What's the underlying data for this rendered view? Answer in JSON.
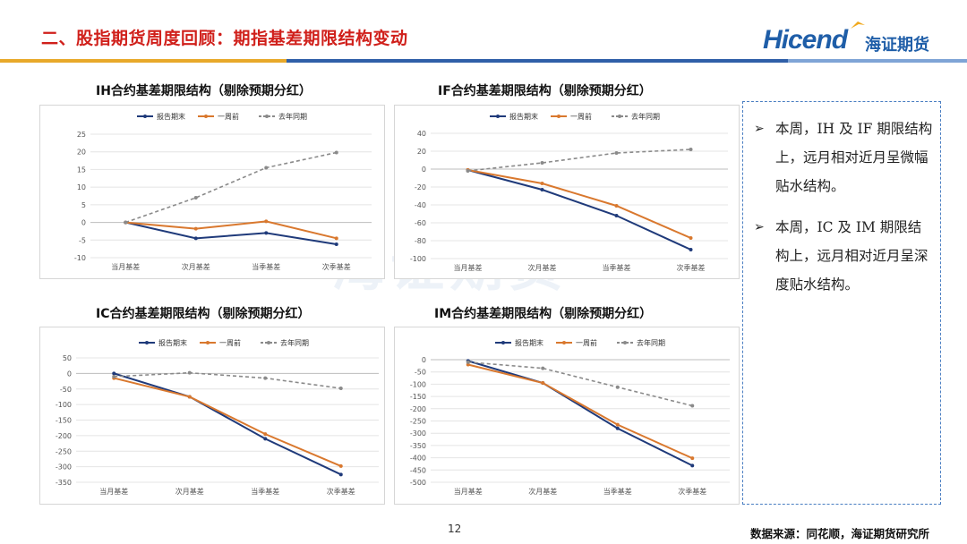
{
  "header": {
    "title": "二、股指期货周度回顾：期指基差期限结构变动",
    "logo_text": "Hicend",
    "logo_cn": "海证期货",
    "stripe_colors": [
      "#e8a92a",
      "#2f5fa8",
      "#7fa4d6"
    ]
  },
  "watermark": "海证期货",
  "legend": {
    "series": [
      "报告期末",
      "一周前",
      "去年同期"
    ]
  },
  "colors": {
    "current": "#1f3a7a",
    "week_ago": "#d9782e",
    "last_year": "#8a8a8a"
  },
  "chart_data": [
    {
      "id": "IH",
      "type": "line",
      "title": "IH合约基差期限结构（剔除预期分红）",
      "categories": [
        "当月基差",
        "次月基差",
        "当季基差",
        "次季基差"
      ],
      "ylim": [
        -10,
        25
      ],
      "yticks": [
        -10,
        -5,
        0,
        5,
        10,
        15,
        20,
        25
      ],
      "series": [
        {
          "name": "报告期末",
          "values": [
            0,
            -4.5,
            -3,
            -6.2
          ]
        },
        {
          "name": "一周前",
          "values": [
            0,
            -1.8,
            0.3,
            -4.5
          ]
        },
        {
          "name": "去年同期",
          "values": [
            0,
            7,
            15.5,
            19.8
          ]
        }
      ]
    },
    {
      "id": "IF",
      "type": "line",
      "title": "IF合约基差期限结构（剔除预期分红）",
      "categories": [
        "当月基差",
        "次月基差",
        "当季基差",
        "次季基差"
      ],
      "ylim": [
        -100,
        40
      ],
      "yticks": [
        -100,
        -80,
        -60,
        -40,
        -20,
        0,
        20,
        40
      ],
      "series": [
        {
          "name": "报告期末",
          "values": [
            -1,
            -23,
            -52,
            -90
          ]
        },
        {
          "name": "一周前",
          "values": [
            -1,
            -16,
            -41,
            -77
          ]
        },
        {
          "name": "去年同期",
          "values": [
            -2,
            7,
            18,
            22
          ]
        }
      ]
    },
    {
      "id": "IC",
      "type": "line",
      "title": "IC合约基差期限结构（剔除预期分红）",
      "categories": [
        "当月基差",
        "次月基差",
        "当季基差",
        "次季基差"
      ],
      "ylim": [
        -350,
        50
      ],
      "yticks": [
        -350,
        -300,
        -250,
        -200,
        -150,
        -100,
        -50,
        0,
        50
      ],
      "series": [
        {
          "name": "报告期末",
          "values": [
            0,
            -75,
            -210,
            -325
          ]
        },
        {
          "name": "一周前",
          "values": [
            -15,
            -75,
            -195,
            -298
          ]
        },
        {
          "name": "去年同期",
          "values": [
            -10,
            2,
            -15,
            -48
          ]
        }
      ]
    },
    {
      "id": "IM",
      "type": "line",
      "title": "IM合约基差期限结构（剔除预期分红）",
      "categories": [
        "当月基差",
        "次月基差",
        "当季基差",
        "次季基差"
      ],
      "ylim": [
        -500,
        0
      ],
      "yticks": [
        -500,
        -450,
        -400,
        -350,
        -300,
        -250,
        -200,
        -150,
        -100,
        -50,
        0
      ],
      "series": [
        {
          "name": "报告期末",
          "values": [
            -5,
            -95,
            -280,
            -432
          ]
        },
        {
          "name": "一周前",
          "values": [
            -20,
            -95,
            -265,
            -402
          ]
        },
        {
          "name": "去年同期",
          "values": [
            -10,
            -35,
            -112,
            -188
          ]
        }
      ]
    }
  ],
  "commentary": {
    "bullets": [
      "本周，IH 及 IF 期限结构上，远月相对近月呈微幅贴水结构。",
      "本周，IC 及 IM 期限结构上，远月相对近月呈深度贴水结构。"
    ]
  },
  "footer": {
    "page_number": "12",
    "source": "数据来源：同花顺，海证期货研究所"
  }
}
